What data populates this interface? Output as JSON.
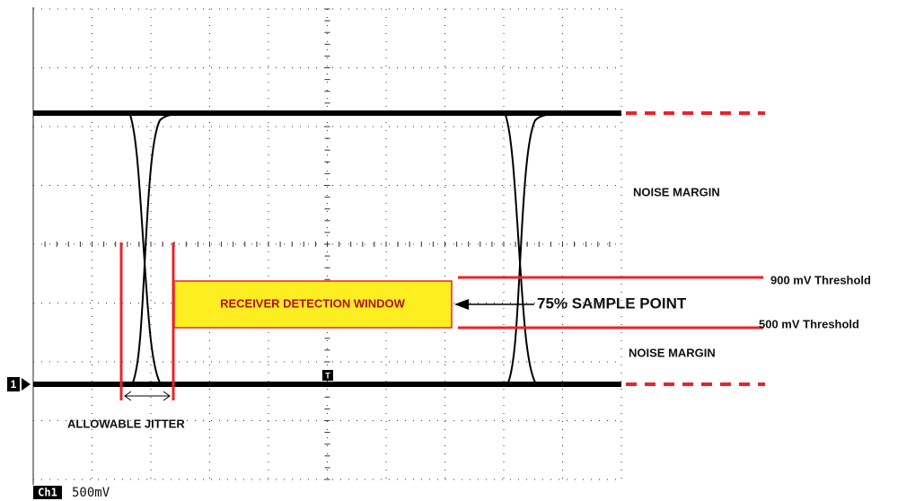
{
  "annotations": {
    "noise_margin_top": "NOISE MARGIN",
    "noise_margin_bottom": "NOISE MARGIN",
    "threshold_high": "900 mV Threshold",
    "threshold_low": "500 mV Threshold",
    "window": "RECEIVER DETECTION WINDOW",
    "sample_point": "75% SAMPLE POINT",
    "jitter": "ALLOWABLE JITTER"
  },
  "scope": {
    "channel_marker": "1",
    "channel": "Ch1",
    "scale": "500mV",
    "trigger_marker": "T"
  }
}
